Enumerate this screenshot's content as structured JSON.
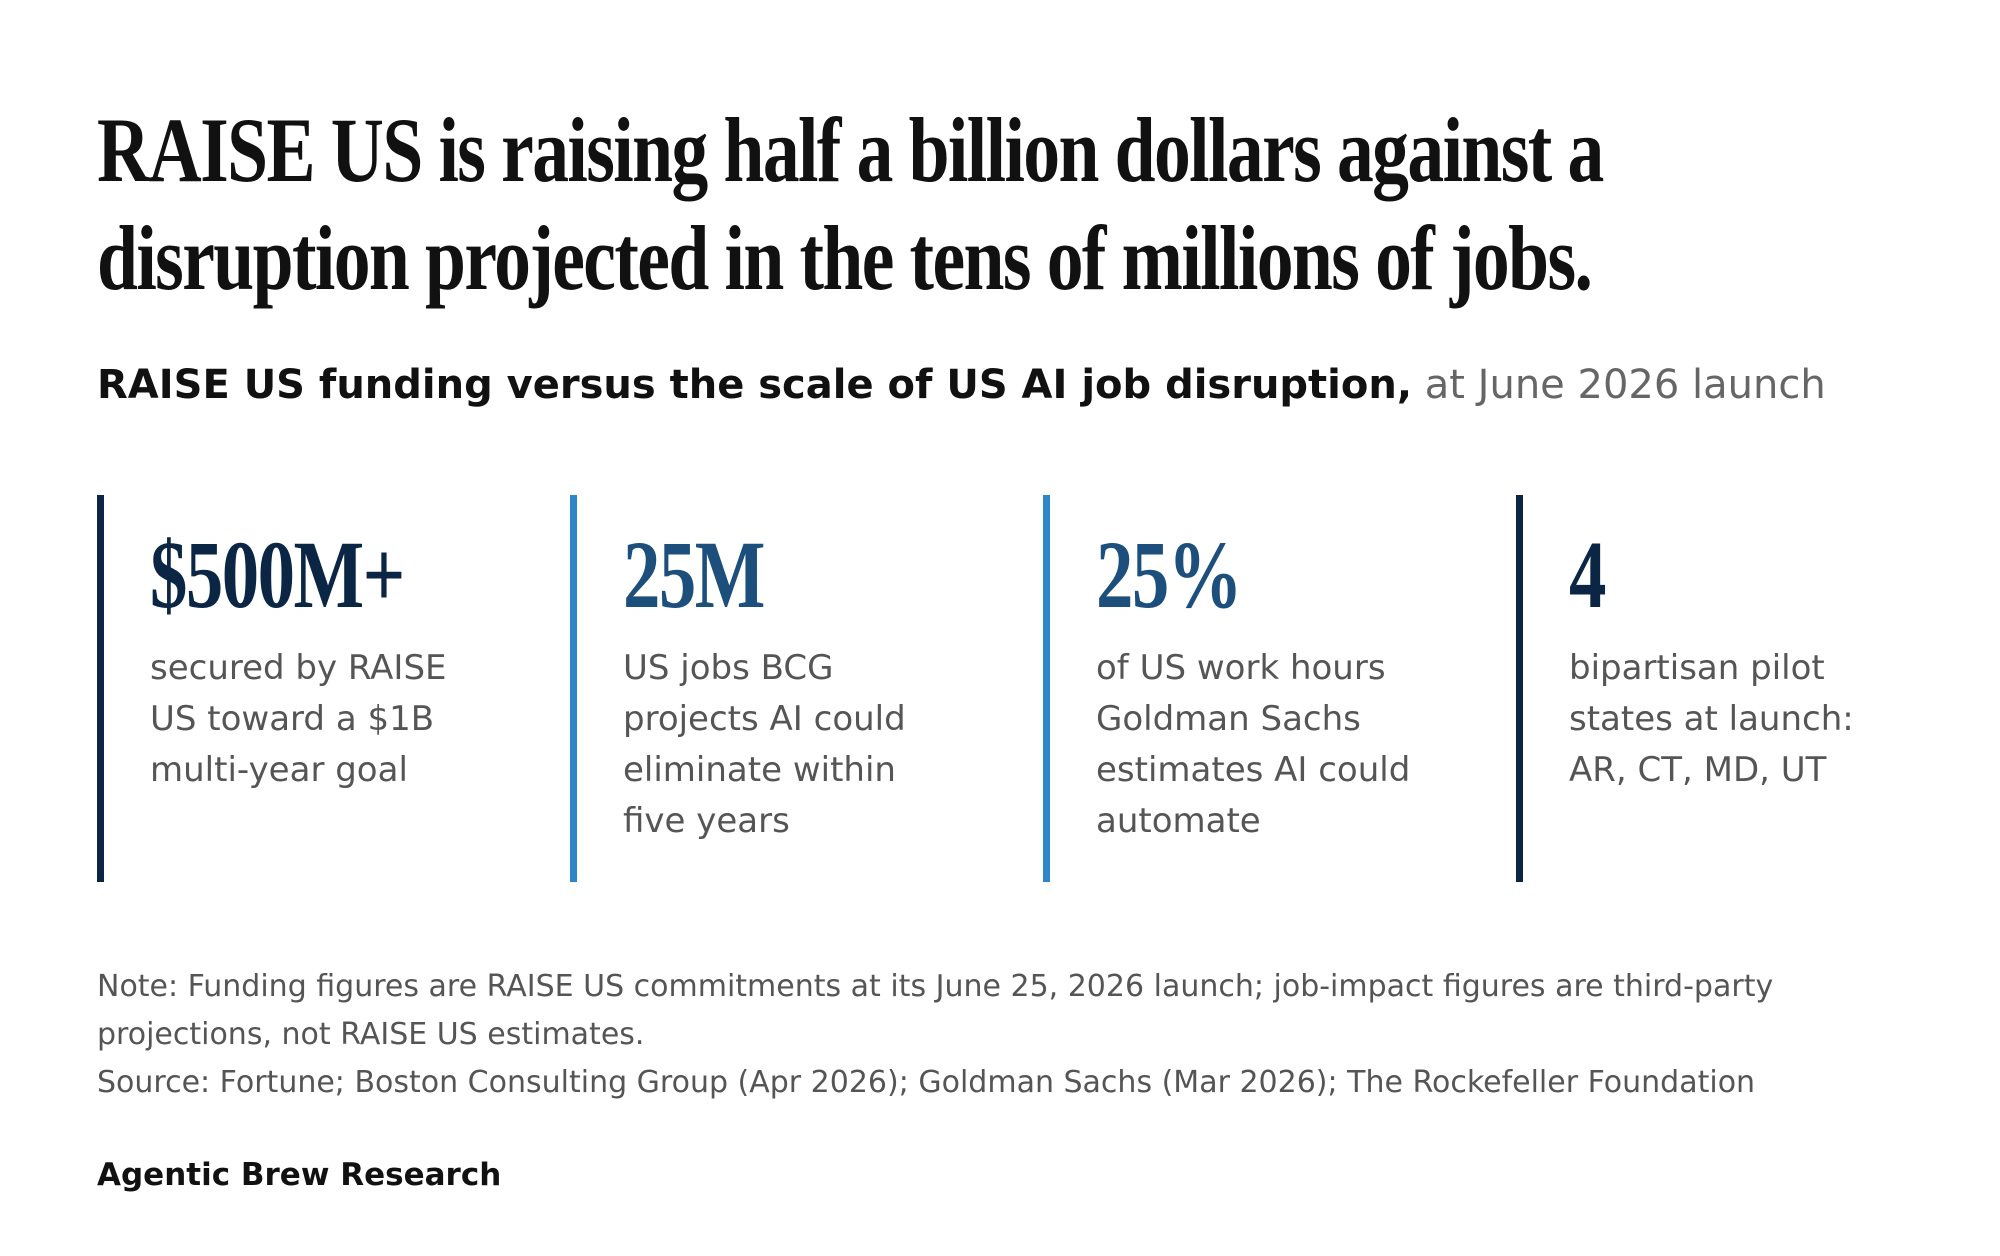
{
  "header": {
    "title": "RAISE US is raising half a billion dollars against a disruption projected in the tens of millions of jobs.",
    "subtitle": "RAISE US funding versus the scale of US AI job disruption,",
    "subtitle_context": "at June 2026 launch"
  },
  "stats": [
    {
      "value": "$500M+",
      "label": "secured by RAISE US toward a $1B multi-year goal",
      "color": "#0b2545",
      "value_color": "#0b2545"
    },
    {
      "value": "25M",
      "label": "US jobs BCG projects AI could eliminate within five years",
      "color": "#2e86c8",
      "value_color": "#1d4f7c"
    },
    {
      "value": "25%",
      "label": "of US work hours Goldman Sachs estimates AI could automate",
      "color": "#2e86c8",
      "value_color": "#1d4f7c"
    },
    {
      "value": "4",
      "label": "bipartisan pilot states at launch: AR, CT, MD, UT",
      "color": "#0b2545",
      "value_color": "#0b2545"
    }
  ],
  "footer": {
    "note": "Note: Funding figures are RAISE US commitments at its June 25, 2026 launch; job-impact figures are third-party projections, not RAISE US estimates.",
    "source": "Source: Fortune; Boston Consulting Group (Apr 2026); Goldman Sachs (Mar 2026); The Rockefeller Foundation",
    "brand": "Agentic Brew Research"
  }
}
